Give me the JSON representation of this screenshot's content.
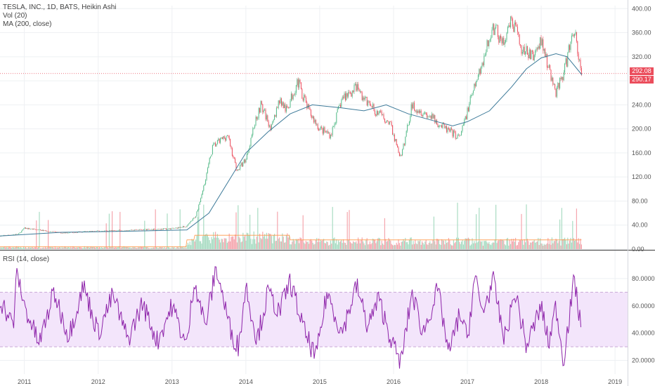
{
  "legend": {
    "title": "TESLA, INC., 1D, BATS, Heikin Ashi",
    "vol": "Vol (20)",
    "ma": "MA (200, close)",
    "rsi": "RSI (14, close)"
  },
  "price_tags": {
    "last": "292.08",
    "ma": "290.17"
  },
  "colors": {
    "up": "#53b987",
    "down": "#eb4d5c",
    "ma": "#3d7a99",
    "vol_ma": "#ff9848",
    "rsi": "#8e24aa",
    "rsi_band": "#f3e5fb",
    "price_line": "#eb4d5c"
  },
  "chart_data": [
    {
      "type": "line",
      "pane": "price",
      "x_ticks": [
        "2011",
        "2012",
        "2013",
        "2014",
        "2015",
        "2016",
        "2017",
        "2018",
        "2019"
      ],
      "y_ticks": [
        "400.00",
        "360.00",
        "320.00",
        "280.00",
        "240.00",
        "200.00",
        "160.00",
        "120.00",
        "80.00",
        "40.00",
        "0.00"
      ],
      "ylim": [
        0,
        405
      ],
      "xlim": [
        2010.67,
        2019.17
      ],
      "series": [
        {
          "style": "candles",
          "x": [
            2010.67,
            2010.92,
            2011.0,
            2011.5,
            2012.0,
            2012.5,
            2013.0,
            2013.2,
            2013.32,
            2013.42,
            2013.55,
            2013.75,
            2013.88,
            2014.0,
            2014.12,
            2014.2,
            2014.35,
            2014.45,
            2014.55,
            2014.7,
            2014.85,
            2015.0,
            2015.15,
            2015.3,
            2015.5,
            2015.6,
            2015.75,
            2015.95,
            2016.1,
            2016.25,
            2016.5,
            2016.7,
            2016.9,
            2017.0,
            2017.2,
            2017.35,
            2017.5,
            2017.6,
            2017.75,
            2017.9,
            2018.0,
            2018.1,
            2018.2,
            2018.3,
            2018.45,
            2018.5,
            2018.55
          ],
          "values": [
            22,
            25,
            35,
            27,
            30,
            32,
            34,
            38,
            55,
            100,
            170,
            190,
            130,
            150,
            210,
            240,
            200,
            250,
            230,
            280,
            230,
            200,
            190,
            250,
            270,
            250,
            230,
            210,
            150,
            240,
            220,
            200,
            185,
            230,
            310,
            370,
            340,
            380,
            330,
            320,
            350,
            300,
            260,
            290,
            370,
            320,
            292
          ]
        },
        {
          "name": "MA (200, close)",
          "x": [
            2010.67,
            2011.5,
            2012.5,
            2013.2,
            2013.5,
            2013.8,
            2014.0,
            2014.3,
            2014.6,
            2014.9,
            2015.3,
            2015.6,
            2015.9,
            2016.2,
            2016.5,
            2016.8,
            2017.0,
            2017.3,
            2017.6,
            2017.8,
            2018.0,
            2018.2,
            2018.35,
            2018.55
          ],
          "values": [
            22,
            28,
            30,
            32,
            60,
            120,
            160,
            195,
            225,
            240,
            235,
            230,
            240,
            225,
            215,
            205,
            212,
            230,
            270,
            300,
            318,
            325,
            320,
            290
          ]
        }
      ]
    },
    {
      "type": "bar",
      "pane": "volume",
      "series": [
        {
          "name": "Vol (20)"
        }
      ]
    },
    {
      "type": "line",
      "pane": "rsi",
      "title": "RSI (14, close)",
      "y_ticks": [
        "80.0000",
        "60.0000",
        "40.0000",
        "20.0000"
      ],
      "ylim": [
        10,
        100
      ],
      "band": [
        30,
        70
      ],
      "series": [
        {
          "name": "RSI",
          "x": [
            2010.67,
            2010.85,
            2010.9,
            2011.0,
            2011.2,
            2011.4,
            2011.6,
            2011.8,
            2012.0,
            2012.2,
            2012.4,
            2012.6,
            2012.8,
            2013.0,
            2013.2,
            2013.3,
            2013.45,
            2013.6,
            2013.8,
            2013.9,
            2014.0,
            2014.15,
            2014.3,
            2014.45,
            2014.6,
            2014.8,
            2014.95,
            2015.1,
            2015.3,
            2015.5,
            2015.65,
            2015.8,
            2016.0,
            2016.1,
            2016.25,
            2016.4,
            2016.6,
            2016.75,
            2016.9,
            2017.0,
            2017.1,
            2017.2,
            2017.35,
            2017.5,
            2017.65,
            2017.8,
            2018.0,
            2018.1,
            2018.2,
            2018.3,
            2018.45,
            2018.55
          ],
          "values": [
            65,
            45,
            85,
            60,
            32,
            70,
            38,
            75,
            40,
            68,
            35,
            62,
            34,
            60,
            30,
            80,
            45,
            88,
            40,
            30,
            75,
            35,
            70,
            55,
            78,
            40,
            22,
            70,
            40,
            75,
            45,
            65,
            30,
            18,
            70,
            40,
            72,
            25,
            55,
            35,
            82,
            55,
            78,
            35,
            70,
            30,
            60,
            32,
            60,
            20,
            80,
            38
          ]
        }
      ]
    }
  ]
}
